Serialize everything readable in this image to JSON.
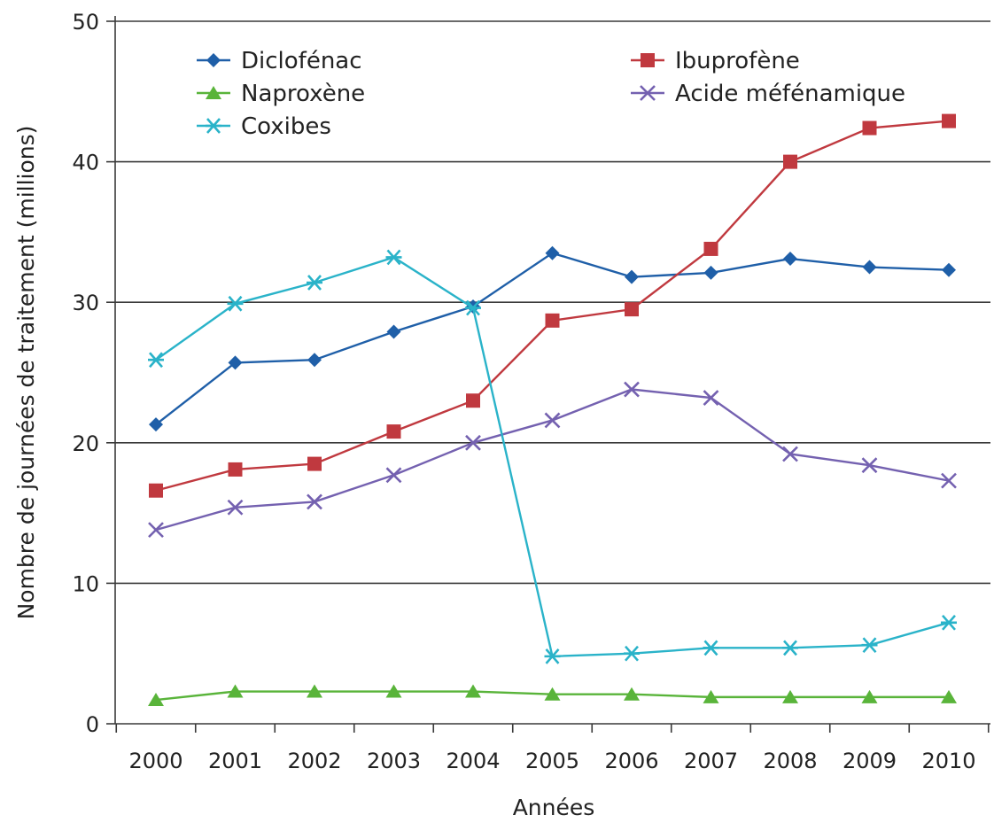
{
  "chart_data": {
    "type": "line",
    "title": "",
    "xlabel": "Années",
    "ylabel": "Nombre de journées de traitement (millions)",
    "categories": [
      "2000",
      "2001",
      "2002",
      "2003",
      "2004",
      "2005",
      "2006",
      "2007",
      "2008",
      "2009",
      "2010"
    ],
    "ylim": [
      0,
      50
    ],
    "yticks": [
      "0",
      "10",
      "20",
      "30",
      "40",
      "50"
    ],
    "grid": "horizontal",
    "legend_position": "top",
    "series": [
      {
        "name": "Diclofénac",
        "marker": "diamond",
        "color": "#1f5fa8",
        "values": [
          21.3,
          25.7,
          25.9,
          27.9,
          29.7,
          33.5,
          31.8,
          32.1,
          33.1,
          32.5,
          32.3
        ]
      },
      {
        "name": "Ibuprofène",
        "marker": "square",
        "color": "#c0393f",
        "values": [
          16.6,
          18.1,
          18.5,
          20.8,
          23.0,
          28.7,
          29.5,
          33.8,
          40.0,
          42.4,
          42.9
        ]
      },
      {
        "name": "Naproxène",
        "marker": "triangle",
        "color": "#59b43a",
        "values": [
          1.7,
          2.3,
          2.3,
          2.3,
          2.3,
          2.1,
          2.1,
          1.9,
          1.9,
          1.9,
          1.9
        ]
      },
      {
        "name": "Acide méfénamique",
        "marker": "x",
        "color": "#7461b0",
        "values": [
          13.8,
          15.4,
          15.8,
          17.7,
          20.0,
          21.6,
          23.8,
          23.2,
          19.2,
          18.4,
          17.3
        ]
      },
      {
        "name": "Coxibes",
        "marker": "star",
        "color": "#2ab3c9",
        "values": [
          25.9,
          29.9,
          31.4,
          33.2,
          29.6,
          4.8,
          5.0,
          5.4,
          5.4,
          5.6,
          7.2
        ]
      }
    ]
  }
}
